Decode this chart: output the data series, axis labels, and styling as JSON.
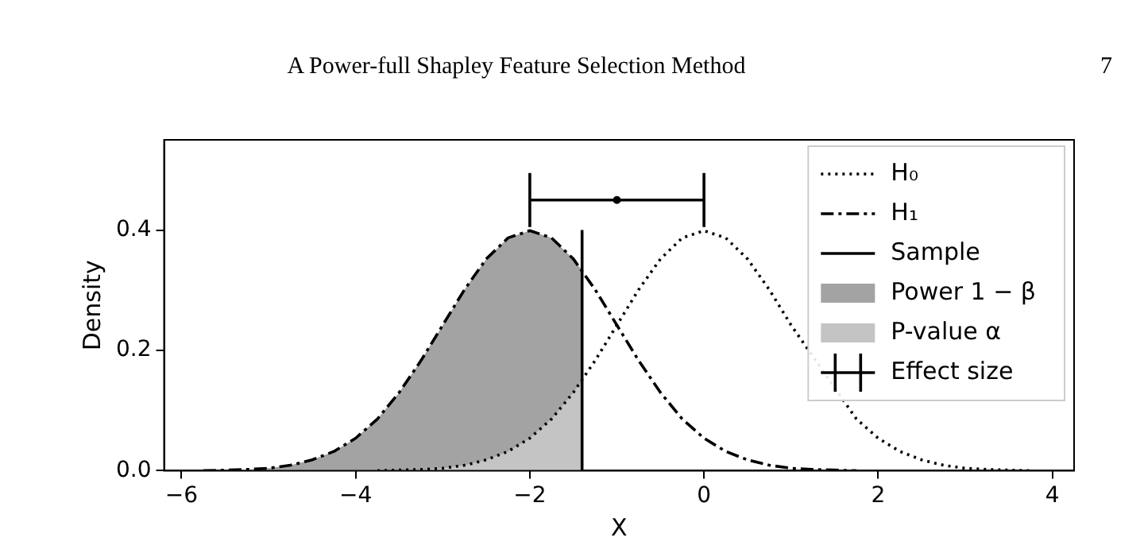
{
  "chart_data": {
    "type": "line",
    "xlabel": "X",
    "ylabel": "Density",
    "annotations": [
      "A Power-full Shapley Feature Selection Method",
      "7"
    ],
    "xlim": [
      -6.2,
      4.25
    ],
    "ylim": [
      0,
      0.55
    ],
    "xticks": [
      {
        "value": -6,
        "label": "−6"
      },
      {
        "value": -4,
        "label": "−4"
      },
      {
        "value": -2,
        "label": "−2"
      },
      0,
      2,
      4
    ],
    "yticks": [
      {
        "value": 0,
        "label": "0.0"
      },
      {
        "value": 0.2,
        "label": "0.2"
      },
      {
        "value": 0.4,
        "label": "0.4"
      }
    ],
    "grid": false,
    "legend": "top right",
    "series": [
      {
        "name": "H₀",
        "marker": "none",
        "color": "#000000",
        "line_style": "dotted",
        "x": [
          -3.75,
          -3.5,
          -3.25,
          -3,
          -2.75,
          -2.5,
          -2.25,
          -2,
          -1.75,
          -1.5,
          -1.25,
          -1,
          -0.75,
          -0.5,
          -0.25,
          0,
          0.25,
          0.5,
          0.75,
          1,
          1.25,
          1.5,
          1.75,
          2,
          2.25,
          2.5,
          2.75,
          3,
          3.25,
          3.5,
          3.75
        ],
        "values": [
          0,
          0.001,
          0.002,
          0.004,
          0.009,
          0.018,
          0.032,
          0.054,
          0.086,
          0.13,
          0.183,
          0.242,
          0.301,
          0.352,
          0.387,
          0.399,
          0.387,
          0.352,
          0.301,
          0.242,
          null,
          null,
          0.086,
          0.054,
          0.032,
          0.018,
          0.009,
          0.004,
          0.002,
          0.001,
          0
        ]
      },
      {
        "name": "H₁",
        "marker": "none",
        "color": "#000000",
        "line_style": "dashed",
        "x": [
          -5.75,
          -5.5,
          -5.25,
          -5,
          -4.75,
          -4.5,
          -4.25,
          -4,
          -3.75,
          -3.5,
          -3.25,
          -3,
          -2.75,
          -2.5,
          -2.25,
          -2,
          -1.75,
          -1.5,
          -1.25,
          -1,
          -0.75,
          -0.5,
          -0.25,
          0,
          0.25,
          0.5,
          0.75,
          1,
          1.25,
          1.5,
          1.75
        ],
        "values": [
          0,
          0.001,
          0.002,
          0.004,
          0.009,
          0.018,
          0.032,
          0.054,
          0.086,
          0.13,
          0.183,
          0.242,
          0.301,
          0.352,
          0.387,
          0.399,
          0.387,
          0.352,
          0.301,
          0.242,
          0.183,
          0.13,
          0.086,
          0.054,
          0.032,
          0.018,
          0.009,
          0.004,
          0.002,
          0.001,
          0
        ]
      },
      {
        "name": "Sample",
        "marker": "none",
        "color": "#000000",
        "line_style": "solid",
        "x": [
          -1.4,
          -1.4
        ],
        "values": [
          0,
          0.4
        ]
      },
      {
        "name": "Power 1 − β",
        "type": "area",
        "color": "#a3a3a3",
        "x": [
          -5.75,
          -5.5,
          -5.25,
          -5,
          -4.75,
          -4.5,
          -4.25,
          -4,
          -3.75,
          -3.5,
          -3.25,
          -3,
          -2.75,
          -2.5,
          -2.25,
          -2,
          -1.75,
          -1.5,
          -1.4
        ],
        "values": [
          0,
          0.001,
          0.002,
          0.004,
          0.009,
          0.018,
          0.032,
          0.054,
          0.086,
          0.13,
          0.183,
          0.242,
          0.301,
          0.352,
          0.387,
          0.399,
          0.387,
          0.352,
          0.333
        ]
      },
      {
        "name": "P-value α",
        "type": "area",
        "color": "#c4c4c4",
        "x": [
          -3.75,
          -3.5,
          -3.25,
          -3,
          -2.75,
          -2.5,
          -2.25,
          -2,
          -1.75,
          -1.5,
          -1.4
        ],
        "values": [
          0,
          0.001,
          0.002,
          0.004,
          0.009,
          0.018,
          0.032,
          0.054,
          0.086,
          0.13,
          0.15
        ]
      },
      {
        "name": "Effect size",
        "type": "scatter",
        "marker": "circle",
        "color": "#000000",
        "x": [
          -1
        ],
        "values": [
          0.45
        ],
        "xerrors": [
          1
        ]
      }
    ]
  }
}
